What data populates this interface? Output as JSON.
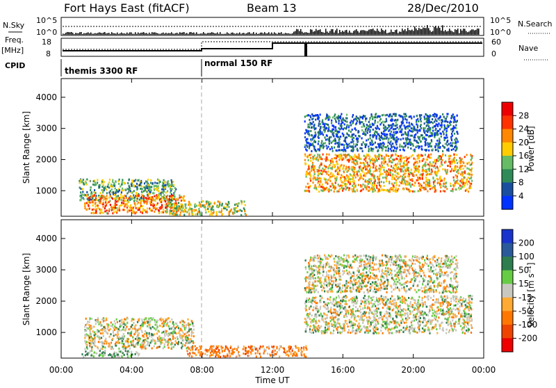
{
  "header": {
    "station": "Fort Hays East (fitACF)",
    "beam": "Beam 13",
    "date": "28/Dec/2010"
  },
  "side_labels": {
    "nsky": "N.Sky",
    "freq_top": "Freq.",
    "freq_unit": "[MHz]",
    "cpid": "CPID",
    "nsearch": "N.Search",
    "nave": "Nave"
  },
  "noise_axis_ticks": [
    "10^5",
    "10^0"
  ],
  "freq_axis_ticks": [
    "18",
    "8"
  ],
  "nave_axis_ticks": [
    "60",
    "0"
  ],
  "cpid_modes": [
    {
      "label": "themis 3300 RF",
      "start_hour": 0
    },
    {
      "label": "normal 150 RF",
      "start_hour": 8
    }
  ],
  "axes": {
    "ylabel": "Slant Range [km]",
    "xlabel": "Time UT",
    "y_ticks": [
      1000,
      2000,
      3000,
      4000
    ],
    "x_ticks": [
      "00:00",
      "04:00",
      "08:00",
      "12:00",
      "16:00",
      "20:00",
      "00:00"
    ],
    "x_range_hours": [
      0,
      24
    ],
    "y_range_km": [
      180,
      4600
    ]
  },
  "power_scale": {
    "label": "Power [dB]",
    "ticks": [
      "4",
      "8",
      "12",
      "16",
      "20",
      "24",
      "28"
    ],
    "colors": [
      "#0033ff",
      "#1a4fa0",
      "#2e8b57",
      "#66bb66",
      "#ffcc00",
      "#ff8800",
      "#ff3300",
      "#ee0000"
    ]
  },
  "velocity_scale": {
    "label": "Velocity [m s⁻¹]",
    "ticks": [
      "200",
      "100",
      "50",
      "15",
      "-15",
      "-50",
      "-100",
      "-200"
    ],
    "colors": [
      "#1a33cc",
      "#2a5a9a",
      "#2e7d4f",
      "#66cc44",
      "#c8c8c0",
      "#ffaa33",
      "#ff7700",
      "#ee4400",
      "#ee0000"
    ]
  },
  "chart_data": {
    "type": "heatmap",
    "title": "Fort Hays East (fitACF)",
    "xlabel": "Time UT",
    "ylabel": "Slant Range [km]",
    "xlim_hours": [
      0,
      24
    ],
    "ylim_km": [
      180,
      4600
    ],
    "panels": [
      {
        "name": "Power",
        "units": "dB",
        "regions": [
          {
            "t_start": 1.0,
            "t_end": 6.5,
            "range_min": 700,
            "range_max": 1400,
            "typical_value": 12
          },
          {
            "t_start": 1.3,
            "t_end": 7.0,
            "range_min": 300,
            "range_max": 900,
            "typical_value": 22
          },
          {
            "t_start": 6.0,
            "t_end": 10.5,
            "range_min": 250,
            "range_max": 700,
            "typical_value": 16
          },
          {
            "t_start": 13.8,
            "t_end": 23.3,
            "range_min": 1000,
            "range_max": 2200,
            "typical_value": 20
          },
          {
            "t_start": 13.8,
            "t_end": 22.5,
            "range_min": 2300,
            "range_max": 3500,
            "typical_value": 6
          }
        ]
      },
      {
        "name": "Velocity",
        "units": "m s^-1",
        "regions": [
          {
            "t_start": 1.3,
            "t_end": 7.5,
            "range_min": 500,
            "range_max": 1500,
            "typical_value": 0
          },
          {
            "t_start": 1.0,
            "t_end": 4.5,
            "range_min": 250,
            "range_max": 450,
            "typical_value": 30
          },
          {
            "t_start": 7.0,
            "t_end": 14.0,
            "range_min": 250,
            "range_max": 600,
            "typical_value": -50
          },
          {
            "t_start": 13.8,
            "t_end": 23.3,
            "range_min": 1000,
            "range_max": 2200,
            "typical_value": 0
          },
          {
            "t_start": 13.8,
            "t_end": 22.5,
            "range_min": 2300,
            "range_max": 3500,
            "typical_value": 0
          }
        ]
      }
    ]
  }
}
